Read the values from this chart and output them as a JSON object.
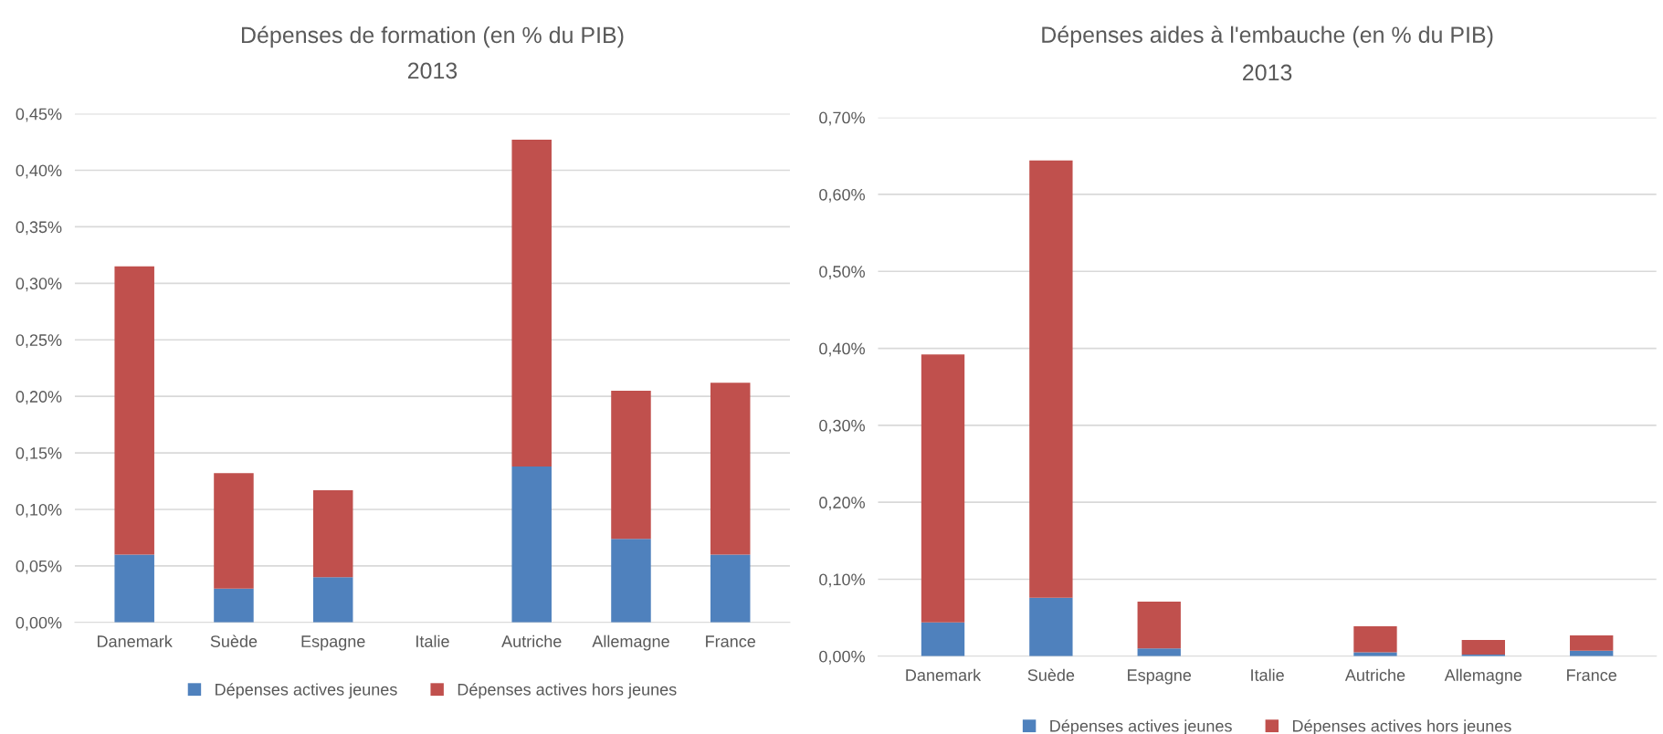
{
  "chart_data": [
    {
      "type": "bar",
      "title": "Dépenses de formation (en % du PIB)",
      "subtitle": "2013",
      "stacked": true,
      "categories": [
        "Danemark",
        "Suède",
        "Espagne",
        "Italie",
        "Autriche",
        "Allemagne",
        "France"
      ],
      "series": [
        {
          "name": "Dépenses actives jeunes",
          "color": "#4f81bd",
          "values": [
            0.06,
            0.03,
            0.04,
            null,
            0.138,
            0.074,
            0.06
          ]
        },
        {
          "name": "Dépenses actives hors jeunes",
          "color": "#c0504d",
          "values": [
            0.255,
            0.102,
            0.077,
            null,
            0.289,
            0.131,
            0.152
          ]
        }
      ],
      "ylim": [
        0,
        0.45
      ],
      "yticks": [
        {
          "value": 0,
          "label": "0,00%"
        },
        {
          "value": 0.05,
          "label": "0,05%"
        },
        {
          "value": 0.1,
          "label": "0,10%"
        },
        {
          "value": 0.15,
          "label": "0,15%"
        },
        {
          "value": 0.2,
          "label": "0,20%"
        },
        {
          "value": 0.25,
          "label": "0,25%"
        },
        {
          "value": 0.3,
          "label": "0,30%"
        },
        {
          "value": 0.35,
          "label": "0,35%"
        },
        {
          "value": 0.4,
          "label": "0,40%"
        },
        {
          "value": 0.45,
          "label": "0,45%"
        }
      ],
      "grid": "y",
      "legend": "bottom"
    },
    {
      "type": "bar",
      "title": "Dépenses aides à l'embauche (en % du PIB)",
      "subtitle": "2013",
      "stacked": true,
      "categories": [
        "Danemark",
        "Suède",
        "Espagne",
        "Italie",
        "Autriche",
        "Allemagne",
        "France"
      ],
      "series": [
        {
          "name": "Dépenses actives jeunes",
          "color": "#4f81bd",
          "values": [
            0.044,
            0.076,
            0.01,
            null,
            0.005,
            0.002,
            0.007
          ]
        },
        {
          "name": "Dépenses actives hors jeunes",
          "color": "#c0504d",
          "values": [
            0.348,
            0.568,
            0.061,
            null,
            0.034,
            0.019,
            0.02
          ]
        }
      ],
      "ylim": [
        0,
        0.7
      ],
      "yticks": [
        {
          "value": 0,
          "label": "0,00%"
        },
        {
          "value": 0.1,
          "label": "0,10%"
        },
        {
          "value": 0.2,
          "label": "0,20%"
        },
        {
          "value": 0.3,
          "label": "0,30%"
        },
        {
          "value": 0.4,
          "label": "0,40%"
        },
        {
          "value": 0.5,
          "label": "0,50%"
        },
        {
          "value": 0.6,
          "label": "0,60%"
        },
        {
          "value": 0.7,
          "label": "0,70%"
        }
      ],
      "grid": "y",
      "legend": "bottom"
    }
  ]
}
